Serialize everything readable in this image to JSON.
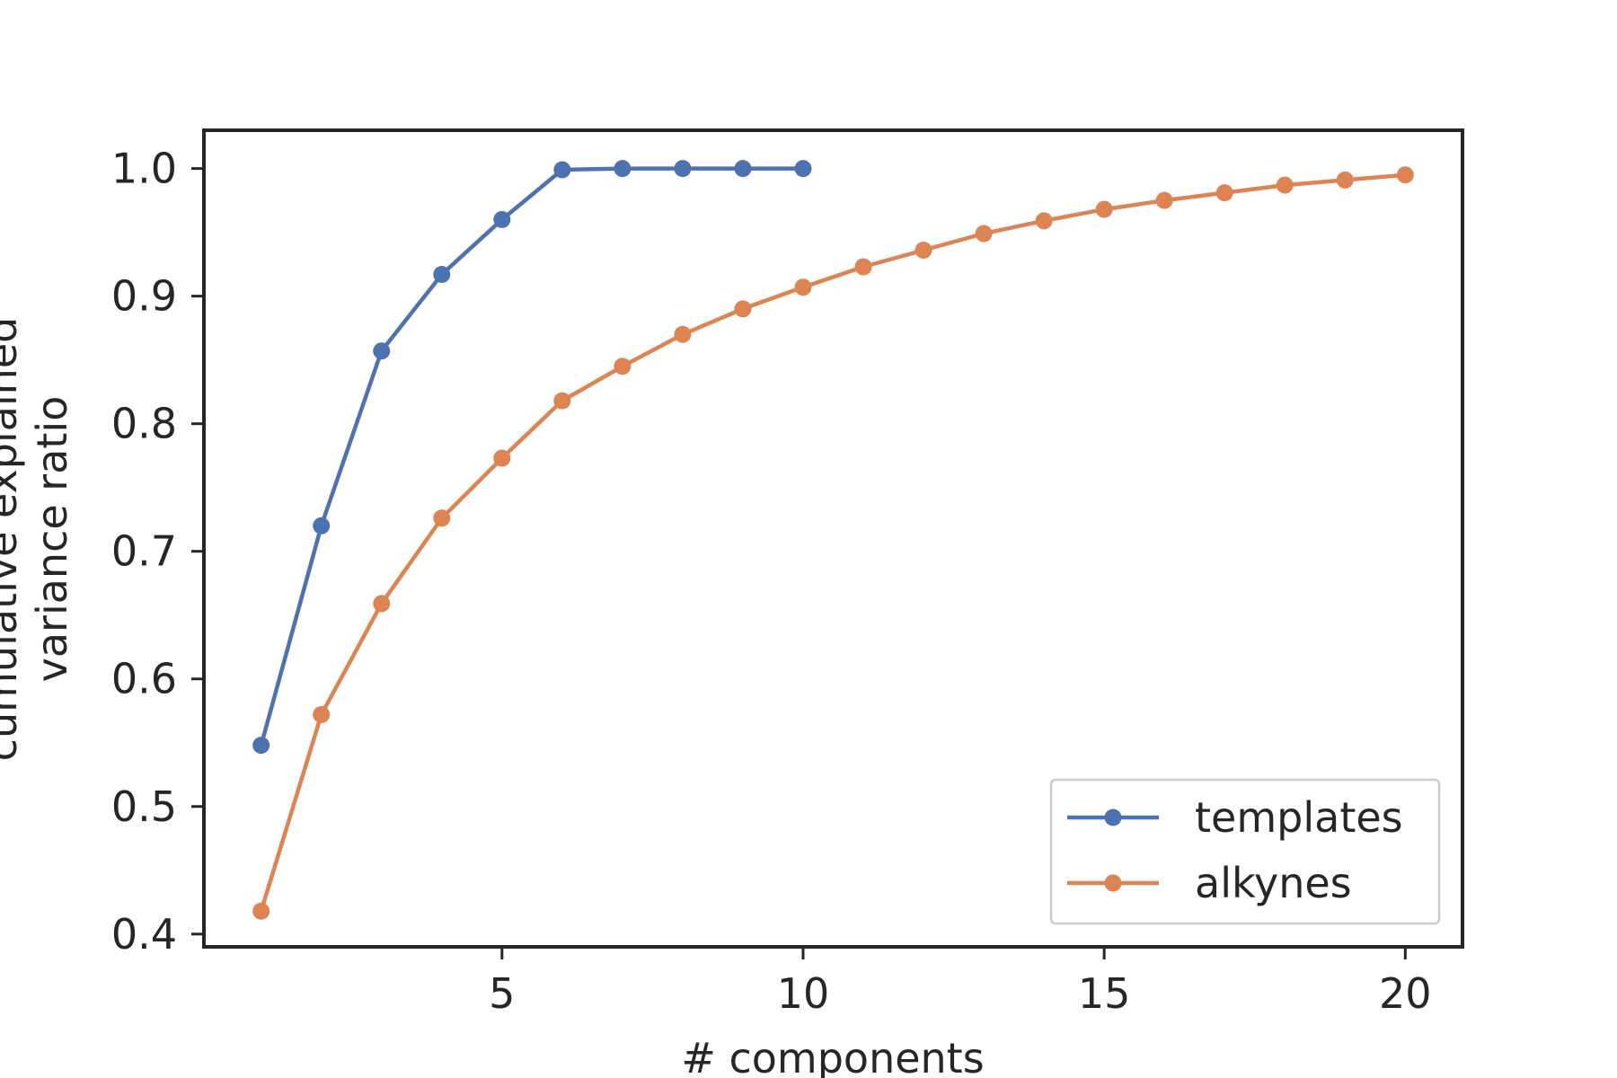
{
  "chart_data": {
    "type": "line",
    "title": "",
    "xlabel": "# components",
    "ylabel_lines": [
      "cumulative explained",
      "variance ratio"
    ],
    "xlim": [
      0.05,
      20.95
    ],
    "ylim": [
      0.39,
      1.03
    ],
    "xticks": [
      5,
      10,
      15,
      20
    ],
    "yticks": [
      0.4,
      0.5,
      0.6,
      0.7,
      0.8,
      0.9,
      1.0
    ],
    "ytick_labels": [
      "0.4",
      "0.5",
      "0.6",
      "0.7",
      "0.8",
      "0.9",
      "1.0"
    ],
    "grid": false,
    "legend_position": "lower-right",
    "series": [
      {
        "name": "templates",
        "color": "#4c72b0",
        "x": [
          1,
          2,
          3,
          4,
          5,
          6,
          7,
          8,
          9,
          10
        ],
        "y": [
          0.548,
          0.72,
          0.857,
          0.917,
          0.96,
          0.999,
          1.0,
          1.0,
          1.0,
          1.0
        ]
      },
      {
        "name": "alkynes",
        "color": "#dd8452",
        "x": [
          1,
          2,
          3,
          4,
          5,
          6,
          7,
          8,
          9,
          10,
          11,
          12,
          13,
          14,
          15,
          16,
          17,
          18,
          19,
          20
        ],
        "y": [
          0.418,
          0.572,
          0.659,
          0.726,
          0.773,
          0.818,
          0.845,
          0.87,
          0.89,
          0.907,
          0.923,
          0.936,
          0.949,
          0.959,
          0.968,
          0.975,
          0.981,
          0.987,
          0.991,
          0.995
        ]
      }
    ]
  }
}
